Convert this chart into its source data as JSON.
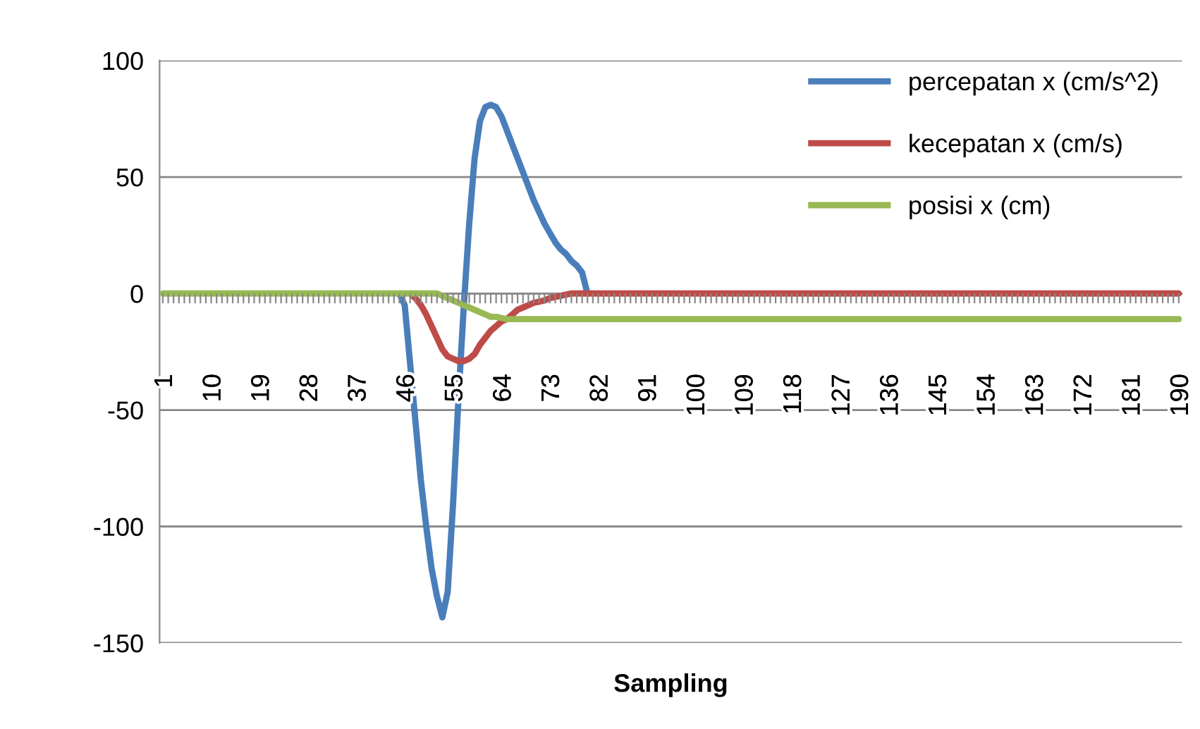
{
  "chart_data": {
    "type": "line",
    "xlabel": "Sampling",
    "categories": [
      "1",
      null,
      null,
      null,
      null,
      null,
      null,
      null,
      null,
      "10",
      null,
      null,
      null,
      null,
      null,
      null,
      null,
      null,
      "19",
      null,
      null,
      null,
      null,
      null,
      null,
      null,
      null,
      "28",
      null,
      null,
      null,
      null,
      null,
      null,
      null,
      null,
      "37",
      null,
      null,
      null,
      null,
      null,
      null,
      null,
      null,
      "46",
      null,
      null,
      null,
      null,
      null,
      null,
      null,
      null,
      "55",
      null,
      null,
      null,
      null,
      null,
      null,
      null,
      null,
      "64",
      null,
      null,
      null,
      null,
      null,
      null,
      null,
      null,
      "73",
      null,
      null,
      null,
      null,
      null,
      null,
      null,
      null,
      "82",
      null,
      null,
      null,
      null,
      null,
      null,
      null,
      null,
      "91",
      null,
      null,
      null,
      null,
      null,
      null,
      null,
      null,
      "100",
      null,
      null,
      null,
      null,
      null,
      null,
      null,
      null,
      "109",
      null,
      null,
      null,
      null,
      null,
      null,
      null,
      null,
      "118",
      null,
      null,
      null,
      null,
      null,
      null,
      null,
      null,
      "127",
      null,
      null,
      null,
      null,
      null,
      null,
      null,
      null,
      "136",
      null,
      null,
      null,
      null,
      null,
      null,
      null,
      null,
      "145",
      null,
      null,
      null,
      null,
      null,
      null,
      null,
      null,
      "154",
      null,
      null,
      null,
      null,
      null,
      null,
      null,
      null,
      "163",
      null,
      null,
      null,
      null,
      null,
      null,
      null,
      null,
      "172",
      null,
      null,
      null,
      null,
      null,
      null,
      null,
      null,
      "181",
      null,
      null,
      null,
      null,
      null,
      null,
      null,
      null,
      "190"
    ],
    "series": [
      {
        "name": "percepatan x (cm/s^2)",
        "color": "#4a7ebb",
        "values": [
          null,
          null,
          null,
          null,
          null,
          null,
          null,
          null,
          null,
          null,
          null,
          null,
          null,
          null,
          null,
          null,
          null,
          null,
          null,
          null,
          null,
          null,
          null,
          null,
          null,
          null,
          null,
          null,
          null,
          null,
          null,
          null,
          null,
          null,
          null,
          null,
          null,
          null,
          null,
          null,
          null,
          null,
          null,
          null,
          0,
          -5,
          -30,
          -55,
          -80,
          -100,
          -118,
          -130,
          -139,
          -128,
          -90,
          -45,
          -5,
          30,
          58,
          74,
          80,
          81,
          80,
          76,
          70,
          64,
          58,
          52,
          46,
          40,
          35,
          30,
          26,
          22,
          19,
          17,
          14,
          12,
          9,
          0,
          null,
          null,
          null,
          null,
          null,
          null,
          null,
          null,
          null,
          null,
          null,
          null,
          null,
          null,
          null,
          null,
          null,
          null,
          null,
          null,
          null,
          null,
          null,
          null,
          null,
          null,
          null,
          null,
          null,
          null,
          null,
          null,
          null,
          null,
          null,
          null,
          null,
          null,
          null,
          null,
          null,
          null,
          null,
          null,
          null,
          null,
          null,
          null,
          null,
          null,
          null,
          null,
          null,
          null,
          null,
          null,
          null,
          null,
          null,
          null,
          null,
          null,
          null,
          null,
          null,
          null,
          null,
          null,
          null,
          null,
          null,
          null,
          null,
          null,
          null,
          null,
          null,
          null,
          null,
          null,
          null,
          null,
          null,
          null,
          null,
          null,
          null,
          null,
          null,
          null,
          null,
          null,
          null,
          null,
          null,
          null,
          null,
          null,
          null,
          null,
          null,
          null,
          null,
          null,
          null,
          null,
          null,
          null,
          null,
          null
        ]
      },
      {
        "name": "kecepatan x (cm/s)",
        "color": "#be4b48",
        "values": [
          null,
          null,
          null,
          null,
          null,
          null,
          null,
          null,
          null,
          null,
          null,
          null,
          null,
          null,
          null,
          null,
          null,
          null,
          null,
          null,
          null,
          null,
          null,
          null,
          null,
          null,
          null,
          null,
          null,
          null,
          null,
          null,
          null,
          null,
          null,
          null,
          null,
          null,
          null,
          null,
          null,
          null,
          null,
          null,
          null,
          null,
          0,
          -2,
          -5,
          -9,
          -14,
          -19,
          -24,
          -27,
          -28,
          -29,
          -29,
          -28,
          -26,
          -22,
          -19,
          -16,
          -14,
          -12,
          -11,
          -9,
          -7,
          -6,
          -5,
          -4,
          -3.5,
          -3,
          -2,
          -1.5,
          -1,
          -0.5,
          0,
          0,
          0,
          0,
          0,
          0,
          0,
          0,
          0,
          0,
          0,
          0,
          0,
          0,
          0,
          0,
          0,
          0,
          0,
          0,
          0,
          0,
          0,
          0,
          0,
          0,
          0,
          0,
          0,
          0,
          0,
          0,
          0,
          0,
          0,
          0,
          0,
          0,
          0,
          0,
          0,
          0,
          0,
          0,
          0,
          0,
          0,
          0,
          0,
          0,
          0,
          0,
          0,
          0,
          0,
          0,
          0,
          0,
          0,
          0,
          0,
          0,
          0,
          0,
          0,
          0,
          0,
          0,
          0,
          0,
          0,
          0,
          0,
          0,
          0,
          0,
          0,
          0,
          0,
          0,
          0,
          0,
          0,
          0,
          0,
          0,
          0,
          0,
          0,
          0,
          0,
          0,
          0,
          0,
          0,
          0,
          0,
          0,
          0,
          0,
          0,
          0,
          0,
          0,
          0,
          0,
          0,
          0,
          0,
          0,
          0,
          0,
          0,
          0
        ]
      },
      {
        "name": "posisi x (cm)",
        "color": "#98b954",
        "values": [
          0,
          0,
          0,
          0,
          0,
          0,
          0,
          0,
          0,
          0,
          0,
          0,
          0,
          0,
          0,
          0,
          0,
          0,
          0,
          0,
          0,
          0,
          0,
          0,
          0,
          0,
          0,
          0,
          0,
          0,
          0,
          0,
          0,
          0,
          0,
          0,
          0,
          0,
          0,
          0,
          0,
          0,
          0,
          0,
          0,
          0,
          0,
          0,
          0,
          0,
          0,
          0,
          -1,
          -2,
          -3,
          -4,
          -5,
          -6,
          -7,
          -8,
          -9,
          -10,
          -10,
          -10.5,
          -11,
          -11,
          -11,
          -11,
          -11,
          -11,
          -11,
          -11,
          -11,
          -11,
          -11,
          -11,
          -11,
          -11,
          -11,
          -11,
          -11,
          -11,
          -11,
          -11,
          -11,
          -11,
          -11,
          -11,
          -11,
          -11,
          -11,
          -11,
          -11,
          -11,
          -11,
          -11,
          -11,
          -11,
          -11,
          -11,
          -11,
          -11,
          -11,
          -11,
          -11,
          -11,
          -11,
          -11,
          -11,
          -11,
          -11,
          -11,
          -11,
          -11,
          -11,
          -11,
          -11,
          -11,
          -11,
          -11,
          -11,
          -11,
          -11,
          -11,
          -11,
          -11,
          -11,
          -11,
          -11,
          -11,
          -11,
          -11,
          -11,
          -11,
          -11,
          -11,
          -11,
          -11,
          -11,
          -11,
          -11,
          -11,
          -11,
          -11,
          -11,
          -11,
          -11,
          -11,
          -11,
          -11,
          -11,
          -11,
          -11,
          -11,
          -11,
          -11,
          -11,
          -11,
          -11,
          -11,
          -11,
          -11,
          -11,
          -11,
          -11,
          -11,
          -11,
          -11,
          -11,
          -11,
          -11,
          -11,
          -11,
          -11,
          -11,
          -11,
          -11,
          -11,
          -11,
          -11,
          -11,
          -11,
          -11,
          -11,
          -11,
          -11,
          -11,
          -11,
          -11,
          -11
        ]
      }
    ],
    "ylim": [
      -150,
      100
    ],
    "yticks": [
      -150,
      -100,
      -50,
      0,
      50,
      100
    ],
    "grid": "y",
    "legend": "top right",
    "marker": "none",
    "line_style": "solid"
  }
}
